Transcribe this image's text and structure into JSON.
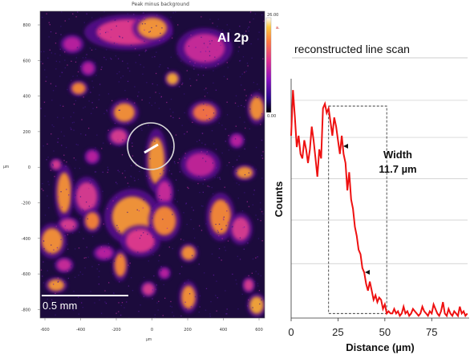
{
  "map": {
    "title": "Peak minus background",
    "element_label": "Al 2p",
    "scalebar_label": "0.5 mm",
    "axis_unit_y": "µm",
    "axis_unit_x": "µm",
    "colorbar_max": "26.00",
    "colorbar_min": "0.00",
    "colorbar_unit": "a.",
    "y_ticks": [
      "800",
      "600",
      "400",
      "200",
      "0",
      "-200",
      "-400",
      "-600",
      "-800"
    ],
    "x_ticks": [
      "-600",
      "-400",
      "-200",
      "0",
      "200",
      "400",
      "600"
    ],
    "colors": {
      "background": "#1a0a3a",
      "low": "#6a0dad",
      "mid": "#e040a0",
      "high": "#ffb020",
      "circle": "#dddddd",
      "scan_line": "#ffffff"
    }
  },
  "chart_data": {
    "type": "line",
    "title": "reconstructed line scan",
    "xlabel": "Distance (µm)",
    "ylabel": "Counts",
    "xlim": [
      0,
      95
    ],
    "ylim": [
      0,
      1.05
    ],
    "x_ticks": [
      0,
      25,
      50,
      75
    ],
    "grid": true,
    "annotation": {
      "label_line1": "Width",
      "label_line2": "11.7 µm",
      "box_x": [
        20,
        51
      ],
      "box_y": [
        0.02,
        0.93
      ]
    },
    "series": [
      {
        "color": "#ee1111",
        "x": [
          0,
          1,
          2,
          3,
          4,
          5,
          6,
          7,
          8,
          9,
          10,
          11,
          12,
          13,
          14,
          15,
          16,
          17,
          18,
          19,
          20,
          21,
          22,
          23,
          24,
          25,
          26,
          27,
          28,
          29,
          30,
          31,
          32,
          33,
          34,
          35,
          36,
          37,
          38,
          39,
          40,
          41,
          42,
          43,
          44,
          45,
          46,
          47,
          48,
          49,
          50,
          51,
          52,
          53,
          54,
          55,
          56,
          57,
          58,
          59,
          60,
          61,
          62,
          63,
          64,
          65,
          66,
          67,
          68,
          69,
          70,
          71,
          72,
          73,
          74,
          75,
          76,
          77,
          78,
          79,
          80,
          81,
          82,
          83,
          84,
          85,
          86,
          87,
          88,
          89,
          90,
          91,
          92,
          93,
          94
        ],
        "values": [
          0.8,
          1.0,
          0.88,
          0.75,
          0.8,
          0.72,
          0.7,
          0.78,
          0.74,
          0.68,
          0.74,
          0.84,
          0.78,
          0.7,
          0.62,
          0.74,
          0.7,
          0.92,
          0.94,
          0.9,
          0.92,
          0.86,
          0.8,
          0.88,
          0.84,
          0.78,
          0.72,
          0.8,
          0.72,
          0.68,
          0.56,
          0.64,
          0.52,
          0.48,
          0.4,
          0.36,
          0.3,
          0.28,
          0.22,
          0.2,
          0.15,
          0.12,
          0.16,
          0.12,
          0.08,
          0.1,
          0.07,
          0.09,
          0.08,
          0.04,
          0.06,
          0.02,
          0.03,
          0.02,
          0.02,
          0.04,
          0.02,
          0.03,
          0.01,
          0.02,
          0.05,
          0.02,
          0.03,
          0.01,
          0.02,
          0.04,
          0.03,
          0.02,
          0.01,
          0.02,
          0.05,
          0.03,
          0.02,
          0.01,
          0.03,
          0.02,
          0.06,
          0.04,
          0.02,
          0.01,
          0.03,
          0.07,
          0.02,
          0.01,
          0.04,
          0.02,
          0.01,
          0.03,
          0.02,
          0.01,
          0.05,
          0.02,
          0.03,
          0.01,
          0.02
        ]
      }
    ]
  }
}
